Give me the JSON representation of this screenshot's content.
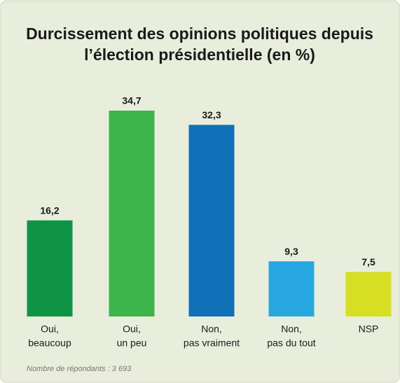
{
  "chart_data": {
    "type": "bar",
    "title": [
      "Durcissement des opinions politiques depuis",
      "l’élection présidentielle (en %)"
    ],
    "categories": [
      [
        "Oui,",
        "beaucoup"
      ],
      [
        "Oui,",
        "un peu"
      ],
      [
        "Non,",
        "pas vraiment"
      ],
      [
        "Non,",
        "pas du tout"
      ],
      [
        "NSP"
      ]
    ],
    "values": [
      16.2,
      34.7,
      32.3,
      9.3,
      7.5
    ],
    "value_labels": [
      "16,2",
      "34,7",
      "32,3",
      "9,3",
      "7,5"
    ],
    "colors": [
      "#0e9444",
      "#3db54a",
      "#1070b8",
      "#27a8e0",
      "#d6df23"
    ],
    "footnote": "Nombre de répondants : 3 693"
  }
}
